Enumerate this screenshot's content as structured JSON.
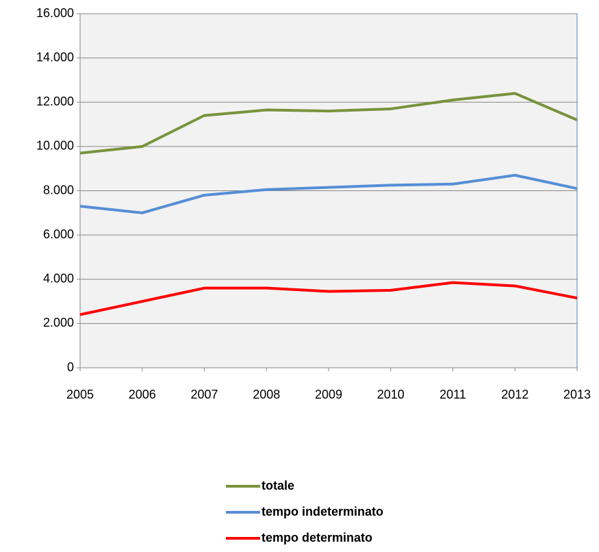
{
  "chart_data": {
    "type": "line",
    "categories": [
      "2005",
      "2006",
      "2007",
      "2008",
      "2009",
      "2010",
      "2011",
      "2012",
      "2013"
    ],
    "series": [
      {
        "name": "totale",
        "color": "#77933c",
        "values": [
          9700,
          10000,
          11400,
          11650,
          11600,
          11700,
          12100,
          12400,
          11200
        ]
      },
      {
        "name": "tempo indeterminato",
        "color": "#558ed5",
        "values": [
          7300,
          7000,
          7800,
          8050,
          8150,
          8250,
          8300,
          8700,
          8100
        ]
      },
      {
        "name": "tempo determinato",
        "color": "#ff0000",
        "values": [
          2400,
          3000,
          3600,
          3600,
          3450,
          3500,
          3850,
          3700,
          3150
        ]
      }
    ],
    "ylim": [
      0,
      16000
    ],
    "yticks": [
      0,
      {
        "value": 2000,
        "label": "2.000"
      },
      {
        "value": 4000,
        "label": "4.000"
      },
      {
        "value": 6000,
        "label": "6.000"
      },
      {
        "value": 8000,
        "label": "8.000"
      },
      {
        "value": 10000,
        "label": "10.000"
      },
      {
        "value": 12000,
        "label": "12.000"
      },
      {
        "value": 14000,
        "label": "14.000"
      },
      {
        "value": 16000,
        "label": "16.000"
      }
    ],
    "grid": true,
    "legend": "bottom"
  }
}
